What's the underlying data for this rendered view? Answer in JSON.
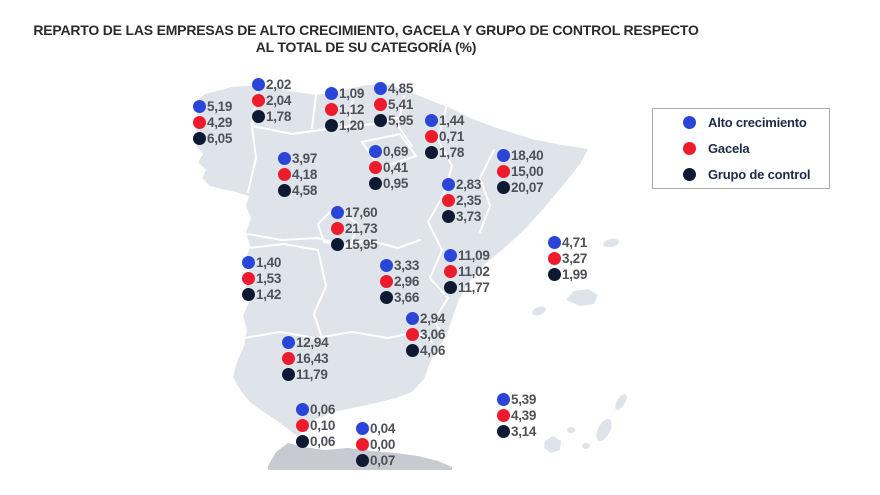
{
  "title": {
    "line1": "REPARTO DE LAS EMPRESAS DE ALTO CRECIMIENTO, GACELA Y GRUPO DE CONTROL RESPECTO",
    "line2": "AL TOTAL DE SU CATEGORÍA (%)"
  },
  "legend": {
    "position": "right",
    "items": [
      {
        "series": "alto-crecimiento",
        "label": "Alto crecimiento",
        "color": "#2a46d8"
      },
      {
        "series": "gacela",
        "label": "Gacela",
        "color": "#ee1b2c"
      },
      {
        "series": "grupo-de-control",
        "label": "Grupo de control",
        "color": "#0d1a31"
      }
    ]
  },
  "colors": {
    "map_fill": "#dfe3ea",
    "map_inner_border": "#ffffff",
    "africa_fill": "#c7cbd1",
    "value_text": "#4f5158",
    "legend_text": "#1d2b49",
    "legend_border": "#aaaaaa",
    "title_text": "#2b2b2b"
  },
  "chart_data": {
    "type": "map",
    "title": "REPARTO DE LAS EMPRESAS DE ALTO CRECIMIENTO, GACELA Y GRUPO DE CONTROL RESPECTO AL TOTAL DE SU CATEGORÍA (%)",
    "unit": "%",
    "decimal_separator": ",",
    "series": [
      "Alto crecimiento",
      "Gacela",
      "Grupo de control"
    ],
    "legend_position": "right",
    "regions": [
      {
        "id": "galicia",
        "labels": [
          "5,19",
          "4,29",
          "6,05"
        ],
        "values": [
          5.19,
          4.29,
          6.05
        ],
        "pos": [
          200,
          107
        ]
      },
      {
        "id": "asturias",
        "labels": [
          "2,02",
          "2,04",
          "1,78"
        ],
        "values": [
          2.02,
          2.04,
          1.78
        ],
        "pos": [
          259,
          85
        ]
      },
      {
        "id": "cantabria",
        "labels": [
          "1,09",
          "1,12",
          "1,20"
        ],
        "values": [
          1.09,
          1.12,
          1.2
        ],
        "pos": [
          332,
          94
        ]
      },
      {
        "id": "pais-vasco",
        "labels": [
          "4,85",
          "5,41",
          "5,95"
        ],
        "values": [
          4.85,
          5.41,
          5.95
        ],
        "pos": [
          381,
          89
        ]
      },
      {
        "id": "navarra",
        "labels": [
          "1,44",
          "0,71",
          "1,78"
        ],
        "values": [
          1.44,
          0.71,
          1.78
        ],
        "pos": [
          432,
          121
        ]
      },
      {
        "id": "la-rioja",
        "labels": [
          "0,69",
          "0,41",
          "0,95"
        ],
        "values": [
          0.69,
          0.41,
          0.95
        ],
        "pos": [
          376,
          152
        ]
      },
      {
        "id": "castilla-y-leon",
        "labels": [
          "3,97",
          "4,18",
          "4,58"
        ],
        "values": [
          3.97,
          4.18,
          4.58
        ],
        "pos": [
          285,
          159
        ]
      },
      {
        "id": "aragon",
        "labels": [
          "2,83",
          "2,35",
          "3,73"
        ],
        "values": [
          2.83,
          2.35,
          3.73
        ],
        "pos": [
          449,
          185
        ]
      },
      {
        "id": "cataluna",
        "labels": [
          "18,40",
          "15,00",
          "20,07"
        ],
        "values": [
          18.4,
          15.0,
          20.07
        ],
        "pos": [
          504,
          156
        ]
      },
      {
        "id": "madrid",
        "labels": [
          "17,60",
          "21,73",
          "15,95"
        ],
        "values": [
          17.6,
          21.73,
          15.95
        ],
        "pos": [
          338,
          213
        ]
      },
      {
        "id": "extremadura",
        "labels": [
          "1,40",
          "1,53",
          "1,42"
        ],
        "values": [
          1.4,
          1.53,
          1.42
        ],
        "pos": [
          249,
          263
        ]
      },
      {
        "id": "castilla-la-mancha",
        "labels": [
          "3,33",
          "2,96",
          "3,66"
        ],
        "values": [
          3.33,
          2.96,
          3.66
        ],
        "pos": [
          387,
          266
        ]
      },
      {
        "id": "comunidad-valenciana",
        "labels": [
          "11,09",
          "11,02",
          "11,77"
        ],
        "values": [
          11.09,
          11.02,
          11.77
        ],
        "pos": [
          451,
          256
        ]
      },
      {
        "id": "baleares",
        "labels": [
          "4,71",
          "3,27",
          "1,99"
        ],
        "values": [
          4.71,
          3.27,
          1.99
        ],
        "pos": [
          555,
          243
        ]
      },
      {
        "id": "murcia",
        "labels": [
          "2,94",
          "3,06",
          "4,06"
        ],
        "values": [
          2.94,
          3.06,
          4.06
        ],
        "pos": [
          413,
          319
        ]
      },
      {
        "id": "andalucia",
        "labels": [
          "12,94",
          "16,43",
          "11,79"
        ],
        "values": [
          12.94,
          16.43,
          11.79
        ],
        "pos": [
          289,
          343
        ]
      },
      {
        "id": "canarias",
        "labels": [
          "5,39",
          "4,39",
          "3,14"
        ],
        "values": [
          5.39,
          4.39,
          3.14
        ],
        "pos": [
          504,
          400
        ]
      },
      {
        "id": "ceuta",
        "labels": [
          "0,06",
          "0,10",
          "0,06"
        ],
        "values": [
          0.06,
          0.1,
          0.06
        ],
        "pos": [
          303,
          410
        ]
      },
      {
        "id": "melilla",
        "labels": [
          "0,04",
          "0,00",
          "0,07"
        ],
        "values": [
          0.04,
          0.0,
          0.07
        ],
        "pos": [
          363,
          429
        ]
      }
    ]
  }
}
